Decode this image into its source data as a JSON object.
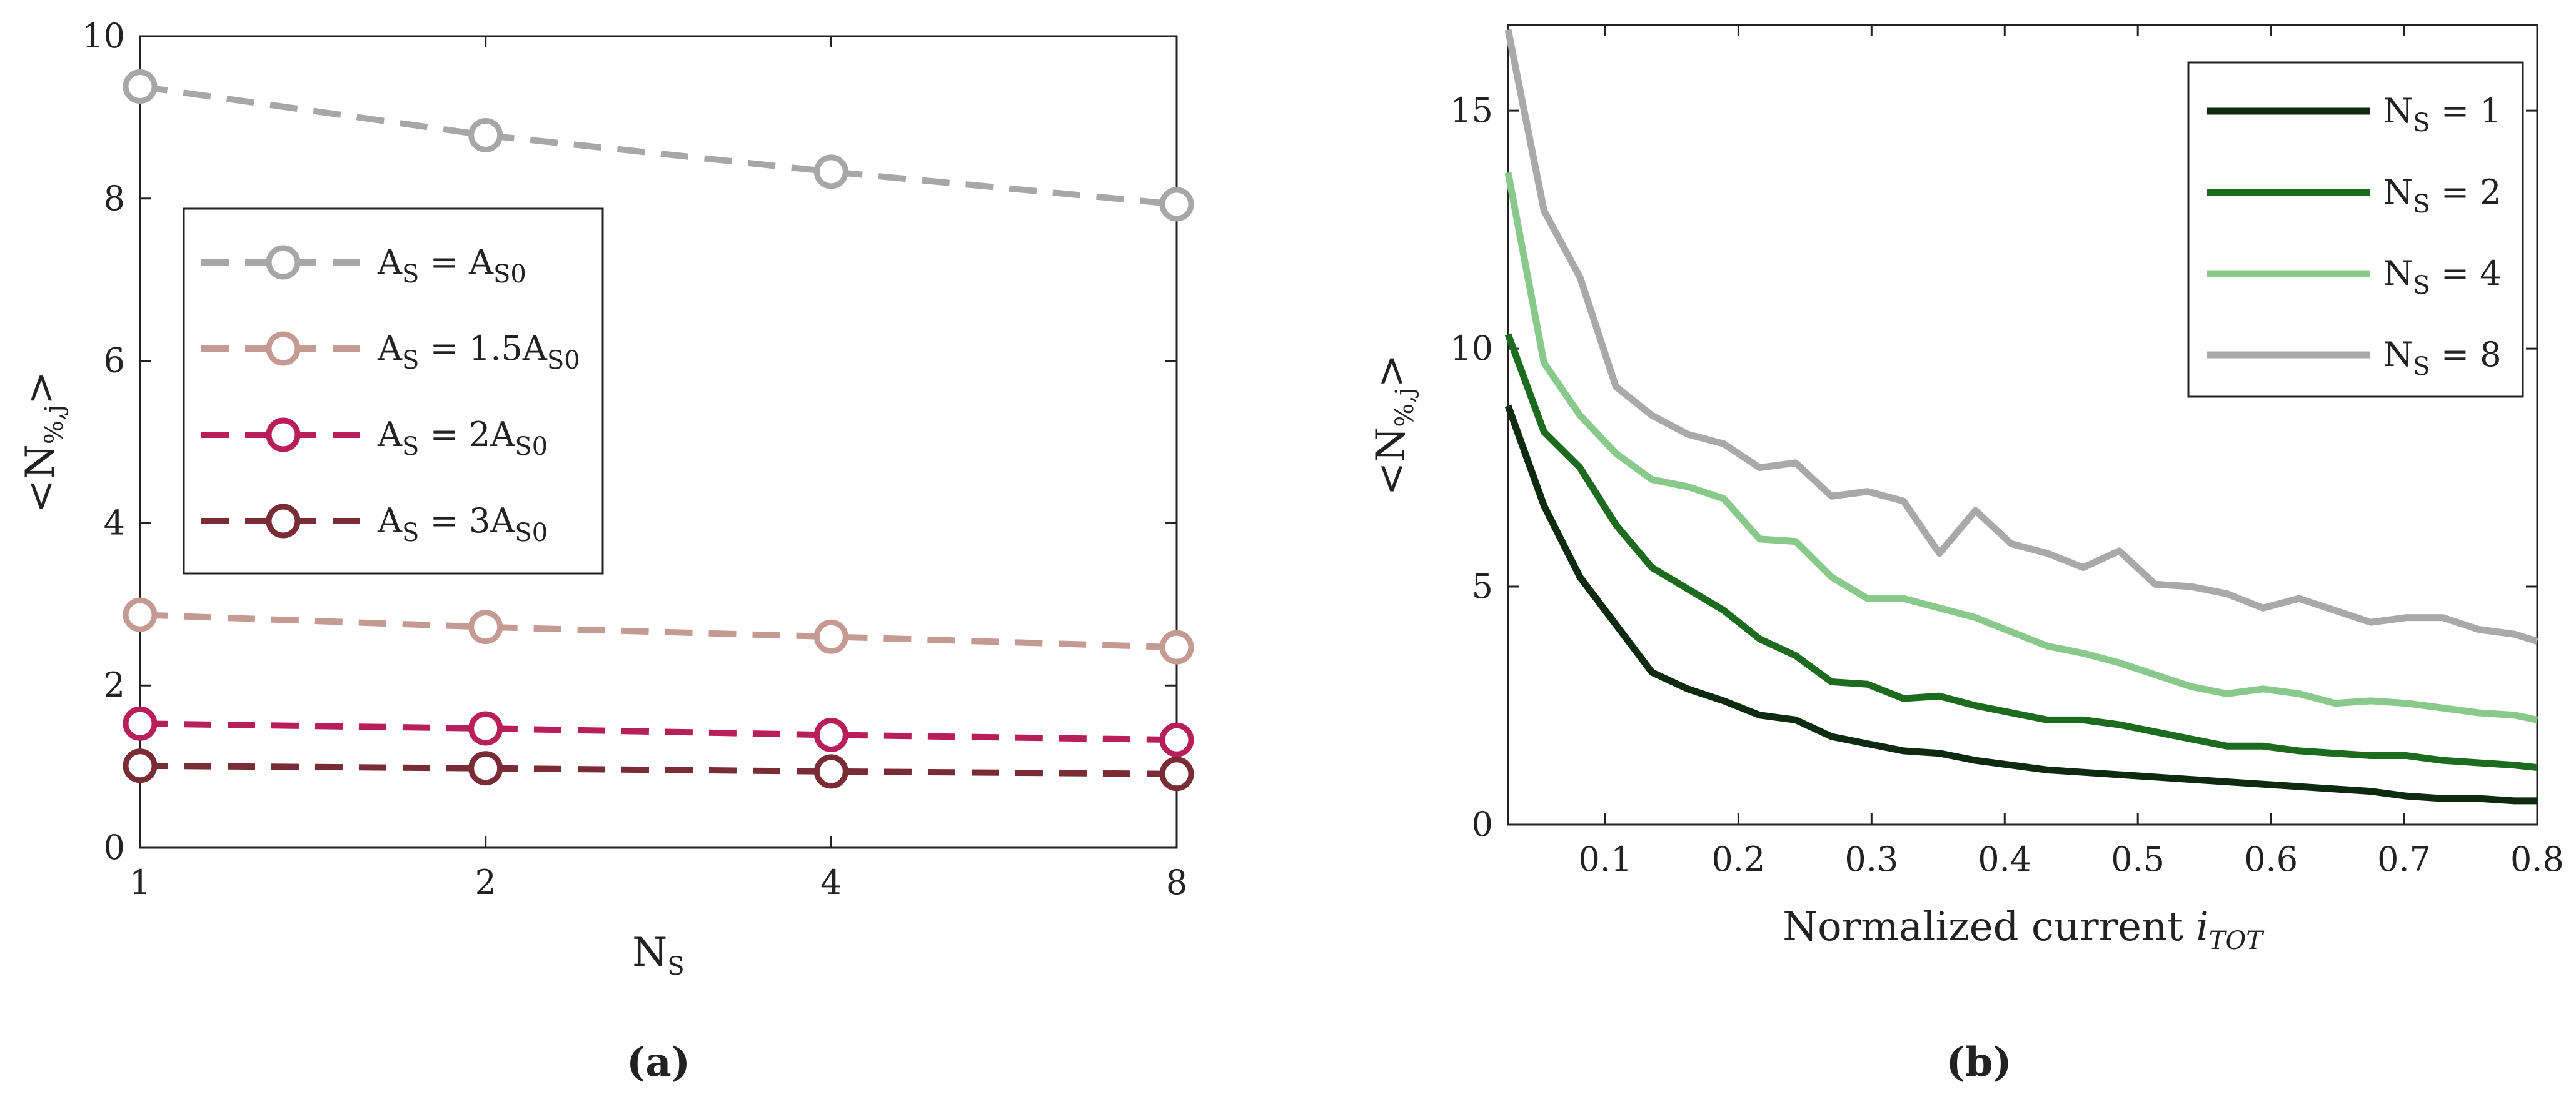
{
  "chart_data": [
    {
      "panel": "a",
      "panel_label": "(a)",
      "type": "line",
      "style": "dashed lines with open circle markers",
      "x": [
        1,
        2,
        4,
        8
      ],
      "x_tick_labels": [
        "1",
        "2",
        "4",
        "8"
      ],
      "x_scale": "categorical (evenly spaced)",
      "y_ticks": [
        0,
        2,
        4,
        6,
        8,
        10
      ],
      "ylim": [
        0,
        10
      ],
      "xlabel": "N",
      "xlabel_sub": "S",
      "ylabel": "<N",
      "ylabel_sub": "%,j",
      "ylabel_end": ">",
      "grid": false,
      "legend_position": "middle-left",
      "series": [
        {
          "name": "A = A",
          "legend_parts": [
            "A",
            "S",
            " = A",
            "S0",
            ""
          ],
          "color": "#a7a7a7",
          "values": [
            9.38,
            8.78,
            8.33,
            7.93
          ]
        },
        {
          "name": "A = 1.5A",
          "legend_parts": [
            "A",
            "S",
            " = 1.5A",
            "S0",
            ""
          ],
          "color": "#c59a92",
          "values": [
            2.87,
            2.72,
            2.6,
            2.47
          ]
        },
        {
          "name": "A = 2A",
          "legend_parts": [
            "A",
            "S",
            " = 2A",
            "S0",
            ""
          ],
          "color": "#b81f5a",
          "values": [
            1.53,
            1.47,
            1.39,
            1.33
          ]
        },
        {
          "name": "A = 3A",
          "legend_parts": [
            "A",
            "S",
            " = 3A",
            "S0",
            ""
          ],
          "color": "#7a2c36",
          "values": [
            1.01,
            0.98,
            0.94,
            0.91
          ]
        }
      ]
    },
    {
      "panel": "b",
      "panel_label": "(b)",
      "type": "line",
      "style": "solid lines",
      "x": [
        0.027,
        0.054,
        0.081,
        0.108,
        0.135,
        0.162,
        0.189,
        0.216,
        0.243,
        0.27,
        0.297,
        0.324,
        0.351,
        0.378,
        0.405,
        0.432,
        0.459,
        0.486,
        0.513,
        0.54,
        0.567,
        0.594,
        0.621,
        0.648,
        0.675,
        0.702,
        0.729,
        0.756,
        0.783,
        0.8
      ],
      "xlim": [
        0.027,
        0.8
      ],
      "x_ticks": [
        0.1,
        0.2,
        0.3,
        0.4,
        0.5,
        0.6,
        0.7,
        0.8
      ],
      "y_ticks": [
        0,
        5,
        10,
        15
      ],
      "ylim": [
        0,
        16.8
      ],
      "xlabel": "Normalized current ",
      "xlabel_italic": "i",
      "xlabel_sub": "TOT",
      "ylabel": "<N",
      "ylabel_sub": "%,j",
      "ylabel_end": ">",
      "grid": false,
      "legend_position": "top-right",
      "series": [
        {
          "name": "N = 1",
          "legend_parts": [
            "N",
            "S",
            " = 1"
          ],
          "color": "#0e2a10",
          "values": [
            8.8,
            6.7,
            5.2,
            4.2,
            3.2,
            2.85,
            2.6,
            2.3,
            2.2,
            1.85,
            1.7,
            1.55,
            1.5,
            1.35,
            1.25,
            1.15,
            1.1,
            1.05,
            1.0,
            0.95,
            0.9,
            0.85,
            0.8,
            0.75,
            0.7,
            0.6,
            0.55,
            0.55,
            0.5,
            0.5
          ]
        },
        {
          "name": "N = 2",
          "legend_parts": [
            "N",
            "S",
            " = 2"
          ],
          "color": "#1d6b1f",
          "values": [
            10.3,
            8.25,
            7.5,
            6.3,
            5.4,
            4.95,
            4.5,
            3.9,
            3.55,
            3.0,
            2.95,
            2.65,
            2.7,
            2.5,
            2.35,
            2.2,
            2.2,
            2.1,
            1.95,
            1.8,
            1.65,
            1.65,
            1.55,
            1.5,
            1.45,
            1.45,
            1.35,
            1.3,
            1.25,
            1.2
          ]
        },
        {
          "name": "N = 4",
          "legend_parts": [
            "N",
            "S",
            " = 4"
          ],
          "color": "#8ac98c",
          "values": [
            13.7,
            9.7,
            8.6,
            7.8,
            7.25,
            7.1,
            6.85,
            6.0,
            5.95,
            5.2,
            4.75,
            4.75,
            4.55,
            4.35,
            4.05,
            3.75,
            3.6,
            3.4,
            3.15,
            2.9,
            2.75,
            2.85,
            2.75,
            2.55,
            2.6,
            2.55,
            2.45,
            2.35,
            2.3,
            2.2
          ]
        },
        {
          "name": "N = 8",
          "legend_parts": [
            "N",
            "S",
            " = 8"
          ],
          "color": "#a9a9a9",
          "values": [
            16.7,
            12.9,
            11.5,
            9.2,
            8.6,
            8.2,
            8.0,
            7.5,
            7.6,
            6.9,
            7.0,
            6.8,
            5.7,
            6.6,
            5.9,
            5.7,
            5.4,
            5.75,
            5.05,
            5.0,
            4.85,
            4.55,
            4.75,
            4.5,
            4.25,
            4.35,
            4.35,
            4.1,
            4.0,
            3.85
          ]
        }
      ]
    }
  ]
}
